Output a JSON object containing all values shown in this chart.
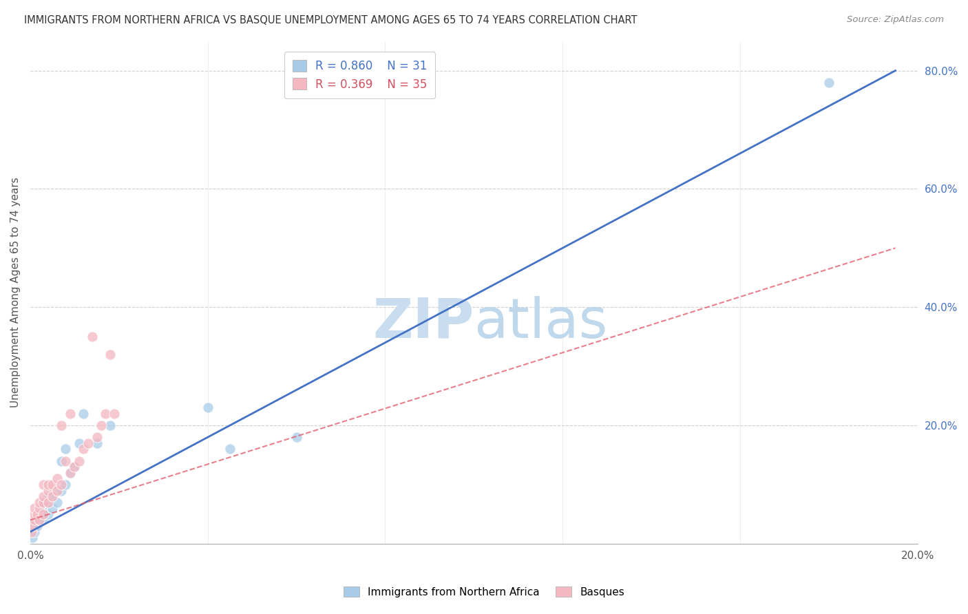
{
  "title": "IMMIGRANTS FROM NORTHERN AFRICA VS BASQUE UNEMPLOYMENT AMONG AGES 65 TO 74 YEARS CORRELATION CHART",
  "source": "Source: ZipAtlas.com",
  "xlabel": "",
  "ylabel": "Unemployment Among Ages 65 to 74 years",
  "xlim": [
    0.0,
    0.2
  ],
  "ylim": [
    0.0,
    0.85
  ],
  "xticks": [
    0.0,
    0.04,
    0.08,
    0.12,
    0.16,
    0.2
  ],
  "xticklabels": [
    "0.0%",
    "",
    "",
    "",
    "",
    "20.0%"
  ],
  "yticks_right": [
    0.0,
    0.2,
    0.4,
    0.6,
    0.8
  ],
  "yticklabels_right": [
    "",
    "20.0%",
    "40.0%",
    "60.0%",
    "80.0%"
  ],
  "watermark": "ZIPatlas",
  "legend_blue_r": "0.860",
  "legend_blue_n": "31",
  "legend_pink_r": "0.369",
  "legend_pink_n": "35",
  "blue_scatter_x": [
    0.0005,
    0.001,
    0.001,
    0.0015,
    0.002,
    0.002,
    0.0025,
    0.003,
    0.003,
    0.003,
    0.004,
    0.004,
    0.004,
    0.005,
    0.005,
    0.006,
    0.006,
    0.007,
    0.007,
    0.008,
    0.008,
    0.009,
    0.01,
    0.011,
    0.012,
    0.015,
    0.018,
    0.04,
    0.045,
    0.06,
    0.18
  ],
  "blue_scatter_y": [
    0.01,
    0.02,
    0.03,
    0.03,
    0.04,
    0.05,
    0.05,
    0.04,
    0.06,
    0.07,
    0.05,
    0.07,
    0.08,
    0.06,
    0.08,
    0.07,
    0.09,
    0.09,
    0.14,
    0.1,
    0.16,
    0.12,
    0.13,
    0.17,
    0.22,
    0.17,
    0.2,
    0.23,
    0.16,
    0.18,
    0.78
  ],
  "pink_scatter_x": [
    0.0003,
    0.0005,
    0.001,
    0.001,
    0.001,
    0.0015,
    0.002,
    0.002,
    0.002,
    0.003,
    0.003,
    0.003,
    0.003,
    0.004,
    0.004,
    0.004,
    0.005,
    0.005,
    0.006,
    0.006,
    0.007,
    0.007,
    0.008,
    0.009,
    0.009,
    0.01,
    0.011,
    0.012,
    0.013,
    0.014,
    0.015,
    0.016,
    0.017,
    0.018,
    0.019
  ],
  "pink_scatter_y": [
    0.02,
    0.03,
    0.04,
    0.05,
    0.06,
    0.05,
    0.04,
    0.06,
    0.07,
    0.05,
    0.07,
    0.08,
    0.1,
    0.07,
    0.09,
    0.1,
    0.08,
    0.1,
    0.09,
    0.11,
    0.1,
    0.2,
    0.14,
    0.12,
    0.22,
    0.13,
    0.14,
    0.16,
    0.17,
    0.35,
    0.18,
    0.2,
    0.22,
    0.32,
    0.22
  ],
  "blue_line_x": [
    0.0,
    0.195
  ],
  "blue_line_y": [
    0.02,
    0.8
  ],
  "pink_line_x": [
    0.0,
    0.195
  ],
  "pink_line_y": [
    0.04,
    0.5
  ],
  "blue_color": "#a8cce8",
  "blue_line_color": "#4472c4",
  "pink_color": "#f4b8c1",
  "pink_line_color": "#e06070",
  "background_color": "#ffffff",
  "grid_color": "#d0d0d0"
}
